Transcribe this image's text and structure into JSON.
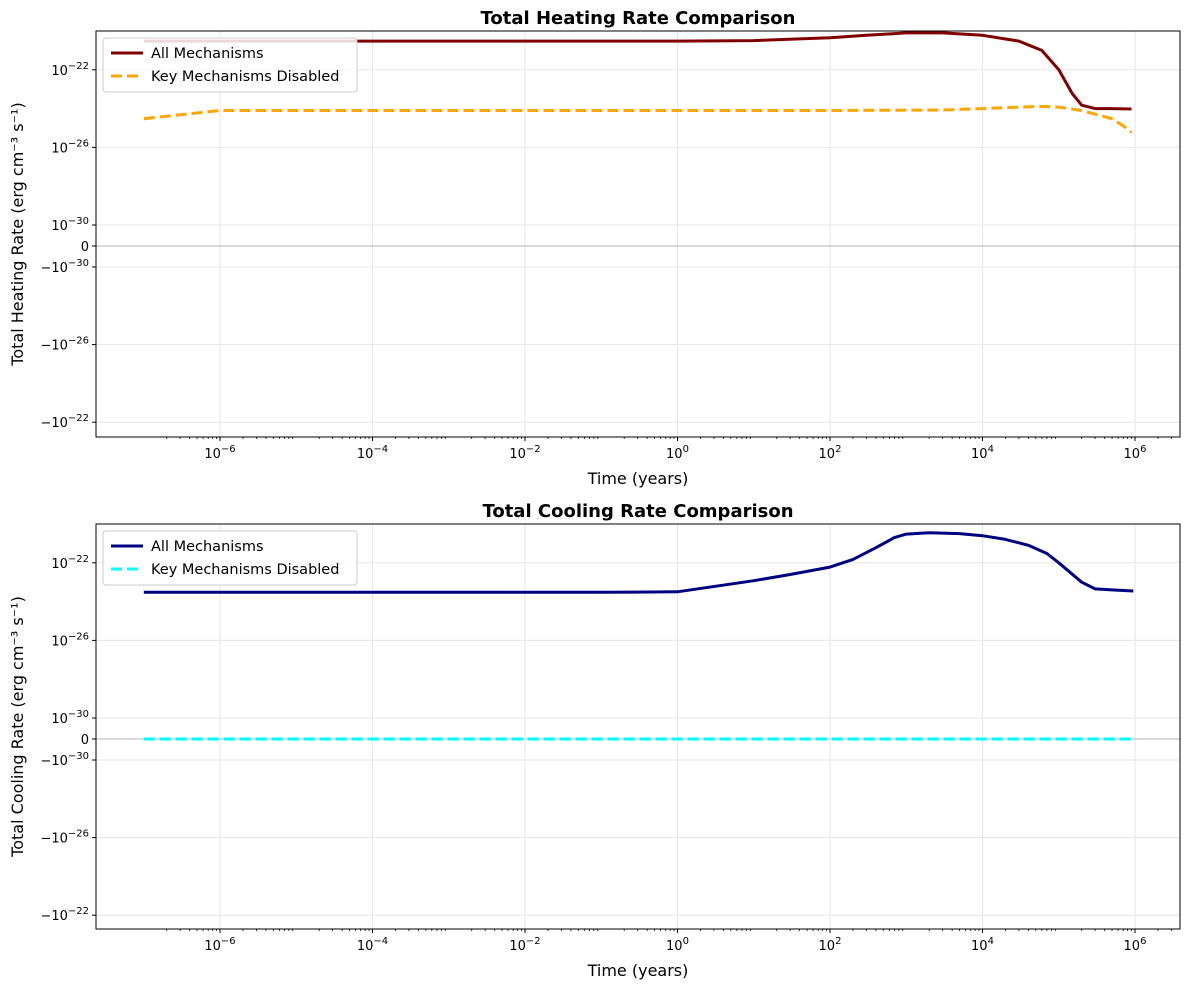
{
  "chart_data": [
    {
      "type": "line",
      "title": "Total Heating Rate Comparison",
      "xlabel": "Time (years)",
      "ylabel": "Total Heating Rate (erg cm⁻³ s⁻¹)",
      "xscale": "log",
      "yscale": "symlog",
      "grid": true,
      "legend_position": "upper-left",
      "xlim": [
        1e-07,
        1000000.0
      ],
      "x_ticks": [
        "10^-6",
        "10^-4",
        "10^-2",
        "10^0",
        "10^2",
        "10^4",
        "10^6"
      ],
      "y_ticks": [
        "10^-22",
        "10^-26",
        "10^-30",
        "0",
        "-10^-30",
        "-10^-26",
        "-10^-22"
      ],
      "series": [
        {
          "name": "All Mechanisms",
          "color": "#800000",
          "style": "solid",
          "points": [
            [
              1e-07,
              3e-21
            ],
            [
              1e-06,
              3e-21
            ],
            [
              0.001,
              3e-21
            ],
            [
              1,
              3e-21
            ],
            [
              10,
              3.2e-21
            ],
            [
              100,
              4.5e-21
            ],
            [
              300,
              6e-21
            ],
            [
              1000,
              8e-21
            ],
            [
              3000,
              8e-21
            ],
            [
              10000,
              6e-21
            ],
            [
              30000,
              3e-21
            ],
            [
              60000,
              1e-21
            ],
            [
              100000,
              1e-22
            ],
            [
              150000,
              6e-24
            ],
            [
              200000,
              1.5e-24
            ],
            [
              300000,
              1e-24
            ],
            [
              500000,
              1e-24
            ],
            [
              900000,
              9.5e-25
            ]
          ]
        },
        {
          "name": "Key Mechanisms Disabled",
          "color": "#ffa500",
          "style": "dashed",
          "points": [
            [
              1e-07,
              3e-25
            ],
            [
              1e-06,
              8e-25
            ],
            [
              0.001,
              8e-25
            ],
            [
              1,
              8e-25
            ],
            [
              100,
              8e-25
            ],
            [
              3000,
              8.5e-25
            ],
            [
              10000,
              1e-24
            ],
            [
              30000,
              1.2e-24
            ],
            [
              60000,
              1.3e-24
            ],
            [
              100000,
              1.2e-24
            ],
            [
              200000,
              8e-25
            ],
            [
              500000,
              3e-25
            ],
            [
              700000,
              1.3e-25
            ],
            [
              900000,
              6e-26
            ]
          ]
        }
      ]
    },
    {
      "type": "line",
      "title": "Total Cooling Rate Comparison",
      "xlabel": "Time (years)",
      "ylabel": "Total Cooling Rate (erg cm⁻³ s⁻¹)",
      "xscale": "log",
      "yscale": "symlog",
      "grid": true,
      "legend_position": "upper-left",
      "xlim": [
        1e-07,
        1000000.0
      ],
      "x_ticks": [
        "10^-6",
        "10^-4",
        "10^-2",
        "10^0",
        "10^2",
        "10^4",
        "10^6"
      ],
      "y_ticks": [
        "10^-22",
        "10^-26",
        "10^-30",
        "0",
        "-10^-30",
        "-10^-26",
        "-10^-22"
      ],
      "series": [
        {
          "name": "All Mechanisms",
          "color": "#000080",
          "style": "solid",
          "points": [
            [
              1e-07,
              3e-24
            ],
            [
              0.001,
              3e-24
            ],
            [
              0.1,
              3e-24
            ],
            [
              1,
              3.2e-24
            ],
            [
              10,
              1.2e-23
            ],
            [
              30,
              2.5e-23
            ],
            [
              100,
              6e-23
            ],
            [
              200,
              1.5e-22
            ],
            [
              400,
              6e-22
            ],
            [
              700,
              2e-21
            ],
            [
              1000,
              3e-21
            ],
            [
              2000,
              3.5e-21
            ],
            [
              5000,
              3.2e-21
            ],
            [
              10000,
              2.5e-21
            ],
            [
              20000,
              1.6e-21
            ],
            [
              40000,
              8e-22
            ],
            [
              70000,
              3e-22
            ],
            [
              100000,
              1e-22
            ],
            [
              200000,
              1e-23
            ],
            [
              300000,
              4.5e-24
            ],
            [
              500000,
              4e-24
            ],
            [
              950000,
              3.5e-24
            ]
          ]
        },
        {
          "name": "Key Mechanisms Disabled",
          "color": "#00ffff",
          "style": "dashed",
          "points": [
            [
              1e-07,
              0
            ],
            [
              1,
              0
            ],
            [
              950000,
              0
            ]
          ]
        }
      ]
    }
  ]
}
